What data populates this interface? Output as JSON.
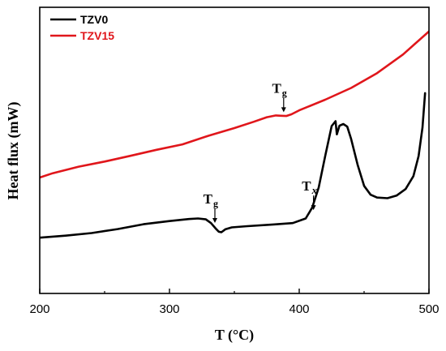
{
  "chart_data": {
    "type": "line",
    "xlabel": "T (°C)",
    "ylabel": "Heat flux (mW)",
    "xlim": [
      200,
      500
    ],
    "ylim": [
      0,
      100
    ],
    "x_ticks": [
      200,
      300,
      400,
      500
    ],
    "y_ticks_shown": false,
    "legend_position": "top-left",
    "series": [
      {
        "name": "TZV0",
        "color": "#000000",
        "points": [
          [
            200,
            19.5
          ],
          [
            220,
            20.2
          ],
          [
            240,
            21.1
          ],
          [
            260,
            22.5
          ],
          [
            280,
            24.2
          ],
          [
            300,
            25.3
          ],
          [
            315,
            26.0
          ],
          [
            322,
            26.2
          ],
          [
            328,
            25.9
          ],
          [
            332,
            24.6
          ],
          [
            336,
            22.5
          ],
          [
            338,
            21.6
          ],
          [
            340,
            21.4
          ],
          [
            343,
            22.4
          ],
          [
            348,
            23.1
          ],
          [
            360,
            23.5
          ],
          [
            380,
            24.1
          ],
          [
            395,
            24.6
          ],
          [
            405,
            26.2
          ],
          [
            410,
            30.0
          ],
          [
            415,
            37.0
          ],
          [
            420,
            48.0
          ],
          [
            425,
            58.5
          ],
          [
            428,
            60.2
          ],
          [
            429,
            55.6
          ],
          [
            431,
            58.6
          ],
          [
            434,
            59.2
          ],
          [
            437,
            58.3
          ],
          [
            440,
            54.0
          ],
          [
            445,
            45.0
          ],
          [
            450,
            37.6
          ],
          [
            455,
            34.5
          ],
          [
            460,
            33.5
          ],
          [
            468,
            33.3
          ],
          [
            475,
            34.2
          ],
          [
            482,
            36.5
          ],
          [
            488,
            41.0
          ],
          [
            492,
            48.0
          ],
          [
            495,
            58.0
          ],
          [
            497,
            70.0
          ]
        ]
      },
      {
        "name": "TZV15",
        "color": "#e0161b",
        "points": [
          [
            200,
            40.5
          ],
          [
            210,
            42.0
          ],
          [
            230,
            44.3
          ],
          [
            250,
            46.1
          ],
          [
            270,
            48.1
          ],
          [
            290,
            50.2
          ],
          [
            310,
            52.1
          ],
          [
            330,
            55.1
          ],
          [
            350,
            57.8
          ],
          [
            365,
            60.0
          ],
          [
            375,
            61.6
          ],
          [
            382,
            62.2
          ],
          [
            386,
            62.1
          ],
          [
            390,
            62.0
          ],
          [
            394,
            62.6
          ],
          [
            400,
            64.0
          ],
          [
            420,
            67.7
          ],
          [
            440,
            71.8
          ],
          [
            460,
            77.0
          ],
          [
            480,
            83.5
          ],
          [
            500,
            91.6
          ]
        ]
      }
    ],
    "annotations": [
      {
        "main": "T",
        "sub": "g",
        "x": 388,
        "y": 62.2,
        "series": "TZV15"
      },
      {
        "main": "T",
        "sub": "g",
        "x": 335,
        "y": 23.5,
        "series": "TZV0"
      },
      {
        "main": "T",
        "sub": "x",
        "x": 411,
        "y": 28.0,
        "series": "TZV0"
      }
    ]
  }
}
